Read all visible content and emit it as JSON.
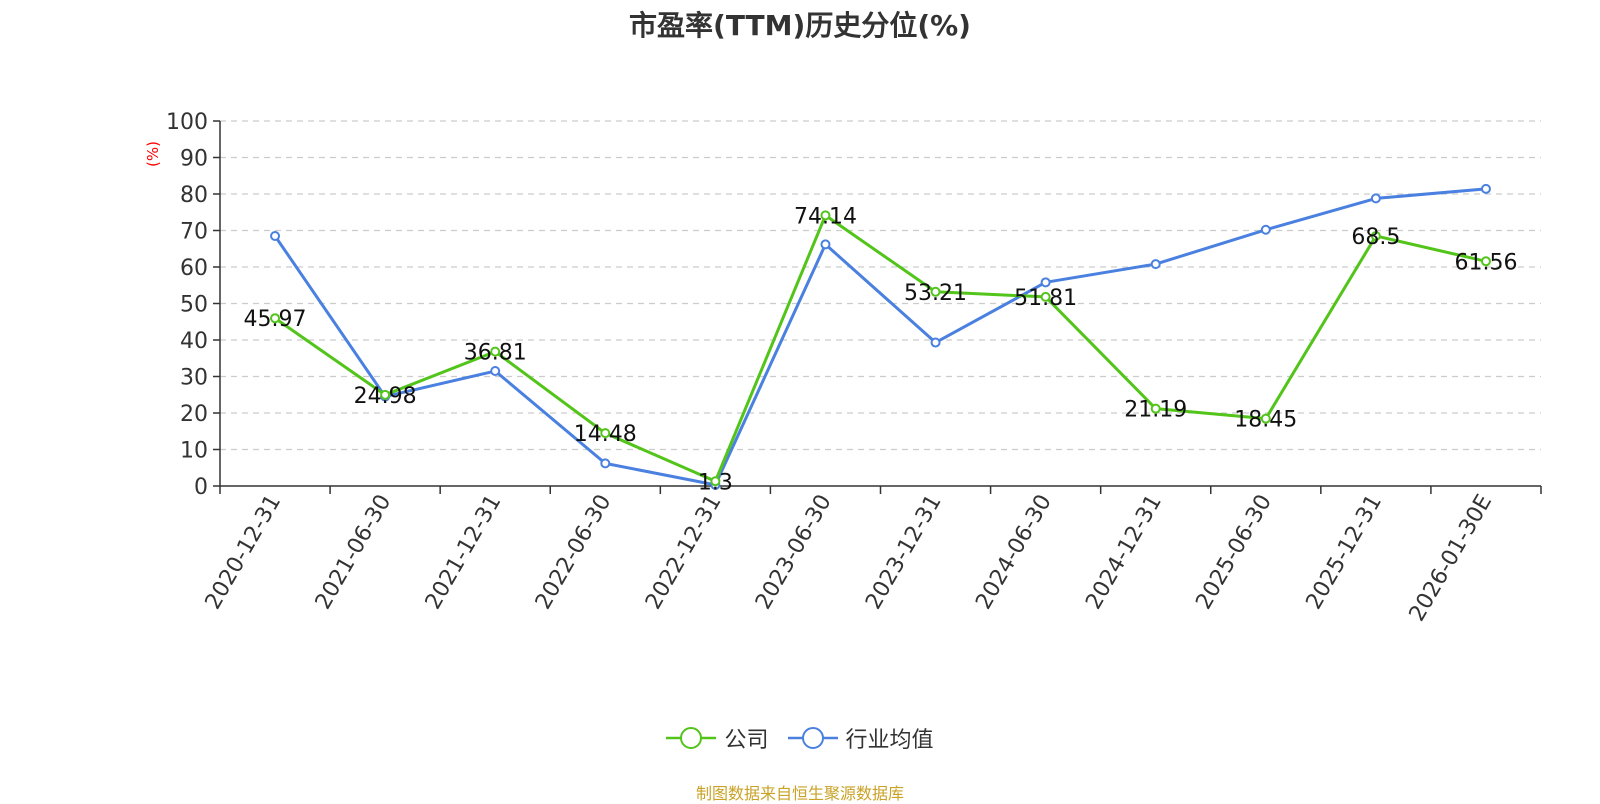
{
  "chart_data": {
    "type": "line",
    "title": "市盈率(TTM)历史分位(%)",
    "ylabel": "(%)",
    "ylim": [
      0,
      100
    ],
    "yticks": [
      0,
      10,
      20,
      30,
      40,
      50,
      60,
      70,
      80,
      90,
      100
    ],
    "grid": true,
    "legend_position": "bottom",
    "categories": [
      "2020-12-31",
      "2021-06-30",
      "2021-12-31",
      "2022-06-30",
      "2022-12-31",
      "2023-06-30",
      "2023-12-31",
      "2024-06-30",
      "2024-12-31",
      "2025-06-30",
      "2025-12-31",
      "2026-01-30E"
    ],
    "series": [
      {
        "name": "公司",
        "color": "#52c41a",
        "values": [
          45.97,
          24.98,
          36.81,
          14.48,
          1.3,
          74.14,
          53.21,
          51.81,
          21.19,
          18.45,
          68.5,
          61.56
        ],
        "labels": [
          "45.97",
          "24.98",
          "36.81",
          "14.48",
          "1.3",
          "74.14",
          "53.21",
          "51.81",
          "21.19",
          "18.45",
          "68.5",
          "61.56"
        ]
      },
      {
        "name": "行业均值",
        "color": "#4a80e0",
        "values": [
          68.5,
          24.5,
          31.5,
          6.2,
          0.3,
          66.2,
          39.3,
          55.8,
          60.8,
          70.2,
          78.8,
          81.4
        ]
      }
    ]
  },
  "source": "制图数据来自恒生聚源数据库"
}
